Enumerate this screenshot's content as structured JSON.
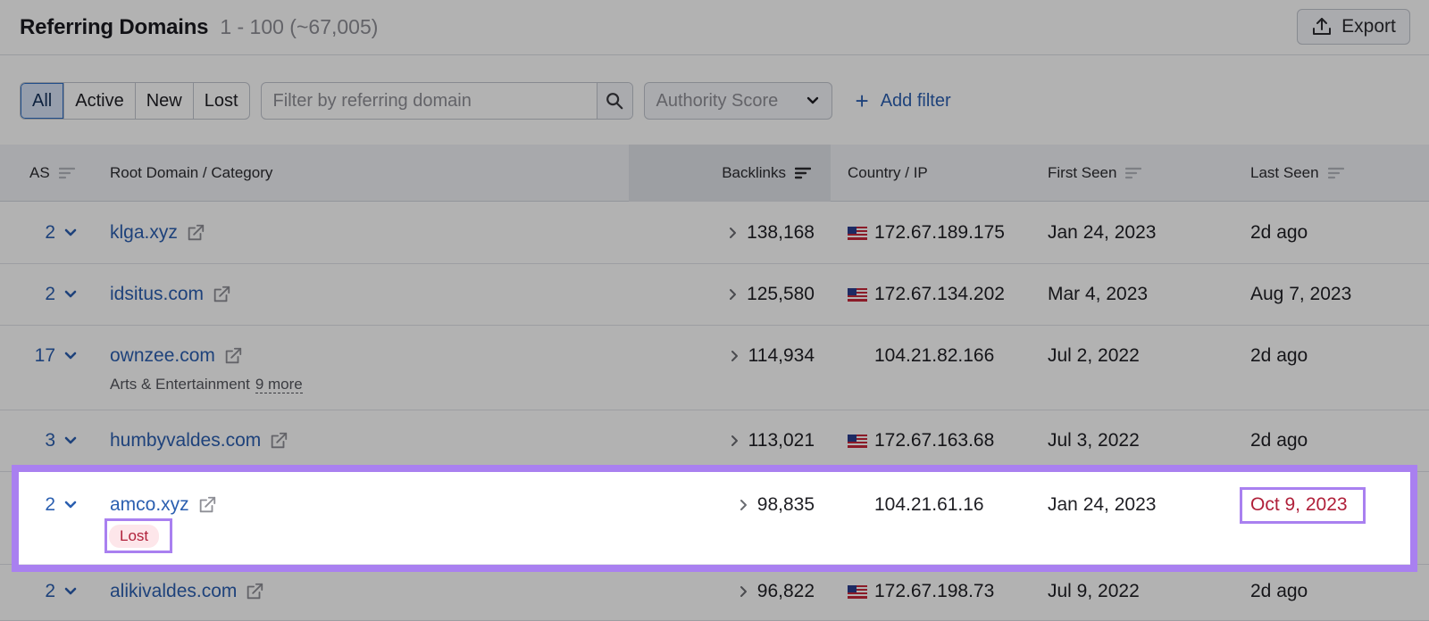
{
  "header": {
    "title": "Referring Domains",
    "count": "1 - 100 (~67,005)",
    "export_label": "Export"
  },
  "filters": {
    "segments": [
      "All",
      "Active",
      "New",
      "Lost"
    ],
    "active_segment": "All",
    "search_placeholder": "Filter by referring domain",
    "authority_label": "Authority Score",
    "add_filter_label": "Add filter"
  },
  "table": {
    "columns": {
      "as": "AS",
      "domain": "Root Domain / Category",
      "backlinks": "Backlinks",
      "country": "Country / IP",
      "first_seen": "First Seen",
      "last_seen": "Last Seen"
    },
    "rows": [
      {
        "as": "2",
        "domain": "klga.xyz",
        "category": "",
        "more": "",
        "backlinks": "138,168",
        "flag": "us",
        "ip": "172.67.189.175",
        "first_seen": "Jan 24, 2023",
        "last_seen": "2d ago"
      },
      {
        "as": "2",
        "domain": "idsitus.com",
        "category": "",
        "more": "",
        "backlinks": "125,580",
        "flag": "us",
        "ip": "172.67.134.202",
        "first_seen": "Mar 4, 2023",
        "last_seen": "Aug 7, 2023"
      },
      {
        "as": "17",
        "domain": "ownzee.com",
        "category": "Arts & Entertainment",
        "more": "9 more",
        "backlinks": "114,934",
        "flag": "",
        "ip": "104.21.82.166",
        "first_seen": "Jul 2, 2022",
        "last_seen": "2d ago"
      },
      {
        "as": "3",
        "domain": "humbyvaldes.com",
        "category": "",
        "more": "",
        "backlinks": "113,021",
        "flag": "us",
        "ip": "172.67.163.68",
        "first_seen": "Jul 3, 2022",
        "last_seen": "2d ago"
      },
      {
        "as": "2",
        "domain": "amco.xyz",
        "category": "",
        "more": "",
        "status": "Lost",
        "backlinks": "98,835",
        "flag": "",
        "ip": "104.21.61.16",
        "first_seen": "Jan 24, 2023",
        "last_seen": "Oct 9, 2023"
      },
      {
        "as": "2",
        "domain": "alikivaldes.com",
        "category": "",
        "more": "",
        "backlinks": "96,822",
        "flag": "us",
        "ip": "172.67.198.73",
        "first_seen": "Jul 9, 2022",
        "last_seen": "2d ago"
      }
    ]
  },
  "colors": {
    "link": "#2b5fb0",
    "highlight": "#a980f0",
    "lost": "#b0203a"
  }
}
